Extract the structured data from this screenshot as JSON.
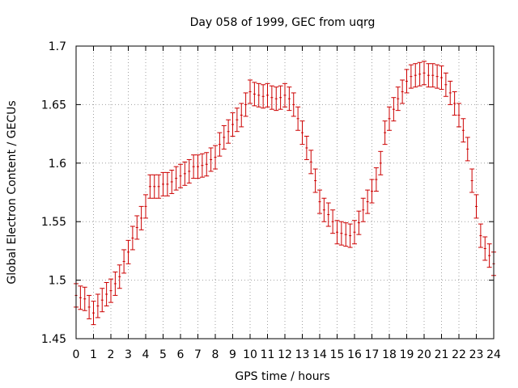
{
  "chart_data": {
    "type": "scatter",
    "title": "Day 058 of 1999, GEC from uqrg",
    "xlabel": "GPS time / hours",
    "ylabel": "Global Electron Content / GECUs",
    "xlim": [
      0,
      24
    ],
    "ylim": [
      1.45,
      1.7
    ],
    "grid": true,
    "x_ticks": [
      "0",
      "1",
      "2",
      "3",
      "4",
      "5",
      "6",
      "7",
      "8",
      "9",
      "10",
      "11",
      "12",
      "13",
      "14",
      "15",
      "16",
      "17",
      "18",
      "19",
      "20",
      "21",
      "22",
      "23",
      "24"
    ],
    "y_ticks": [
      "1.45",
      "1.5",
      "1.55",
      "1.6",
      "1.65",
      "1.7"
    ],
    "series": [
      {
        "name": "GEC",
        "color": "#cc0000",
        "error": 0.01,
        "x": [
          0,
          0.25,
          0.5,
          0.75,
          1,
          1.25,
          1.5,
          1.75,
          2,
          2.25,
          2.5,
          2.75,
          3,
          3.25,
          3.5,
          3.75,
          4,
          4.25,
          4.5,
          4.75,
          5,
          5.25,
          5.5,
          5.75,
          6,
          6.25,
          6.5,
          6.75,
          7,
          7.25,
          7.5,
          7.75,
          8,
          8.25,
          8.5,
          8.75,
          9,
          9.25,
          9.5,
          9.75,
          10,
          10.25,
          10.5,
          10.75,
          11,
          11.25,
          11.5,
          11.75,
          12,
          12.25,
          12.5,
          12.75,
          13,
          13.25,
          13.5,
          13.75,
          14,
          14.25,
          14.5,
          14.75,
          15,
          15.25,
          15.5,
          15.75,
          16,
          16.25,
          16.5,
          16.75,
          17,
          17.25,
          17.5,
          17.75,
          18,
          18.25,
          18.5,
          18.75,
          19,
          19.25,
          19.5,
          19.75,
          20,
          20.25,
          20.5,
          20.75,
          21,
          21.25,
          21.5,
          21.75,
          22,
          22.25,
          22.5,
          22.75,
          23,
          23.25,
          23.5,
          23.75,
          24
        ],
        "y": [
          1.487,
          1.485,
          1.484,
          1.477,
          1.472,
          1.478,
          1.483,
          1.488,
          1.491,
          1.497,
          1.503,
          1.516,
          1.524,
          1.536,
          1.545,
          1.553,
          1.563,
          1.58,
          1.58,
          1.58,
          1.582,
          1.582,
          1.584,
          1.587,
          1.589,
          1.591,
          1.593,
          1.597,
          1.597,
          1.598,
          1.599,
          1.603,
          1.605,
          1.616,
          1.622,
          1.627,
          1.633,
          1.637,
          1.641,
          1.65,
          1.661,
          1.659,
          1.658,
          1.657,
          1.658,
          1.656,
          1.655,
          1.656,
          1.658,
          1.655,
          1.65,
          1.638,
          1.626,
          1.613,
          1.601,
          1.585,
          1.567,
          1.56,
          1.556,
          1.55,
          1.541,
          1.54,
          1.539,
          1.538,
          1.541,
          1.549,
          1.56,
          1.567,
          1.576,
          1.586,
          1.6,
          1.626,
          1.638,
          1.646,
          1.655,
          1.661,
          1.67,
          1.674,
          1.675,
          1.676,
          1.677,
          1.675,
          1.675,
          1.674,
          1.673,
          1.667,
          1.66,
          1.651,
          1.641,
          1.628,
          1.612,
          1.585,
          1.563,
          1.538,
          1.527,
          1.521,
          1.514
        ]
      }
    ]
  }
}
